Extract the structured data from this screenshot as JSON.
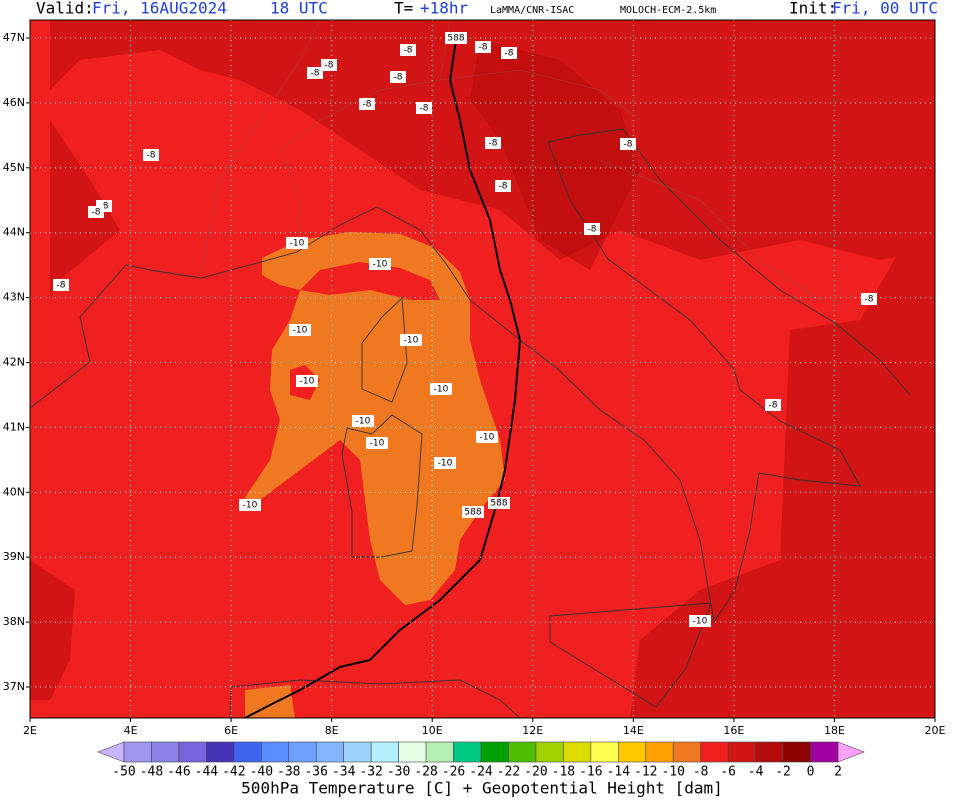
{
  "header": {
    "valid_label": "Valid:",
    "valid_date": "Fri, 16AUG2024",
    "valid_time": "18 UTC",
    "step_label": "T=",
    "step": "+18hr",
    "institute": "LaMMA/CNR-ISAC",
    "model": "MOLOCH-ECM-2.5km",
    "init_label": "Init:",
    "init": "Fri, 00 UTC"
  },
  "map": {
    "lat_labels": [
      "47N",
      "46N",
      "45N",
      "44N",
      "43N",
      "42N",
      "41N",
      "40N",
      "39N",
      "38N",
      "37N"
    ],
    "lon_labels": [
      "2E",
      "4E",
      "6E",
      "8E",
      "10E",
      "12E",
      "14E",
      "16E",
      "18E",
      "20E"
    ],
    "contour_labels": [
      "588",
      "-8",
      "-8",
      "-8",
      "-8",
      "-8",
      "-8",
      "-8",
      "-8",
      "-8",
      "-8",
      "-8",
      "-8",
      "-8",
      "-8",
      "-8",
      "-8",
      "-8",
      "-8",
      "-10",
      "-10",
      "-10",
      "-10",
      "-10",
      "-10",
      "-10",
      "-10",
      "-10",
      "-10",
      "-10",
      "-10",
      "588",
      "588"
    ]
  },
  "colorbar": {
    "ticks": [
      -50,
      -48,
      -46,
      -44,
      -42,
      -40,
      -38,
      -36,
      -34,
      -32,
      -30,
      -28,
      -26,
      -24,
      -22,
      -20,
      -18,
      -16,
      -14,
      -12,
      -10,
      -8,
      -6,
      -4,
      -2,
      0,
      2
    ],
    "low_color": "#c8b4ff",
    "high_color": "#ffa0ff",
    "colors": [
      "#a096f0",
      "#8c82e6",
      "#7864dc",
      "#4632b4",
      "#3c64f0",
      "#5a8cff",
      "#6ea0ff",
      "#82b4ff",
      "#a0d2ff",
      "#b4eeff",
      "#e6ffe6",
      "#b4f0b4",
      "#00c882",
      "#00a000",
      "#50be00",
      "#a0d200",
      "#dcdc00",
      "#ffff50",
      "#ffc800",
      "#ffa000",
      "#f07820",
      "#f02020",
      "#d21414",
      "#b40a0a",
      "#8c0000",
      "#a000a0"
    ],
    "last_color": "#f000f0",
    "title": "500hPa Temperature [C] + Geopotential Height [dam]"
  }
}
